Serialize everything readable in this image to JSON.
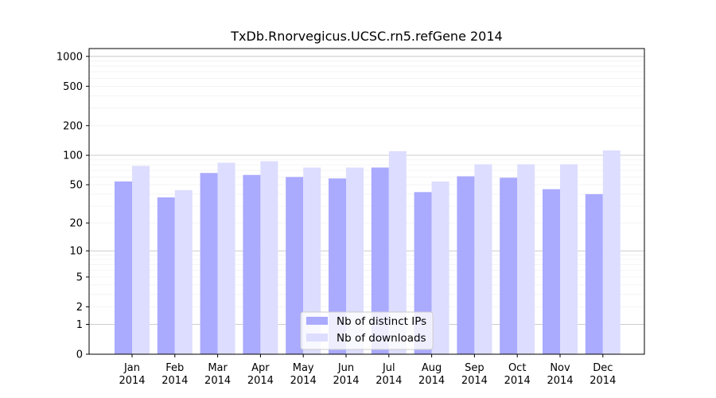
{
  "chart_data": {
    "type": "bar",
    "title": "TxDb.Rnorvegicus.UCSC.rn5.refGene 2014",
    "xlabel": "",
    "ylabel": "",
    "yscale": "log1p",
    "yticks": [
      0,
      1,
      2,
      5,
      10,
      20,
      50,
      100,
      200,
      500,
      1000
    ],
    "ylim": [
      0,
      1200
    ],
    "grid": true,
    "legend_position": "bottom-center",
    "categories": [
      [
        "Jan",
        "2014"
      ],
      [
        "Feb",
        "2014"
      ],
      [
        "Mar",
        "2014"
      ],
      [
        "Apr",
        "2014"
      ],
      [
        "May",
        "2014"
      ],
      [
        "Jun",
        "2014"
      ],
      [
        "Jul",
        "2014"
      ],
      [
        "Aug",
        "2014"
      ],
      [
        "Sep",
        "2014"
      ],
      [
        "Oct",
        "2014"
      ],
      [
        "Nov",
        "2014"
      ],
      [
        "Dec",
        "2014"
      ]
    ],
    "series": [
      {
        "name": "Nb of distinct IPs",
        "color": "#aaaaff",
        "values": [
          54,
          37,
          66,
          63,
          60,
          58,
          75,
          42,
          61,
          59,
          45,
          40
        ]
      },
      {
        "name": "Nb of downloads",
        "color": "#ddddff",
        "values": [
          78,
          44,
          84,
          87,
          75,
          75,
          110,
          54,
          81,
          81,
          81,
          112
        ]
      }
    ]
  }
}
